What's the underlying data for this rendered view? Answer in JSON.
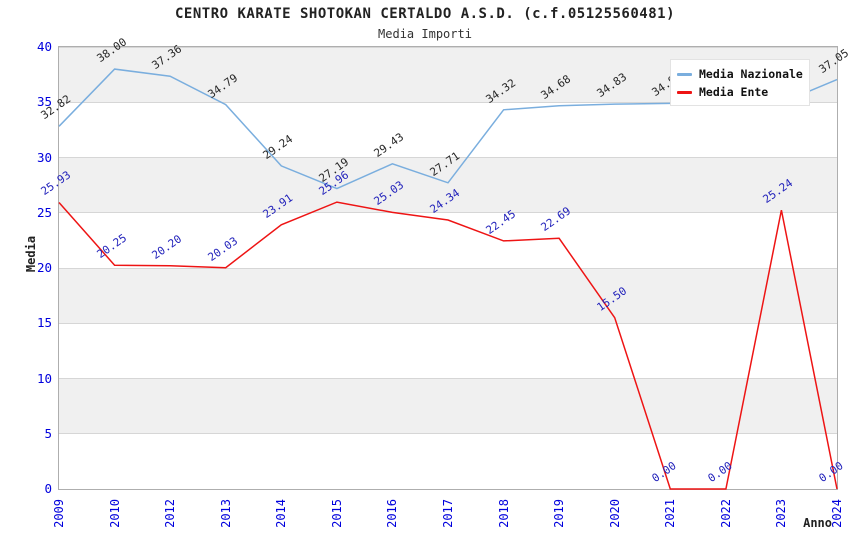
{
  "title": "CENTRO KARATE SHOTOKAN CERTALDO A.S.D. (c.f.05125560481)",
  "subtitle": "Media Importi",
  "colors": {
    "national_line": "#7aaede",
    "ente_line": "#ee1414",
    "axis_tick_text": "#0000dd",
    "national_label_text": "#262626",
    "ente_label_text": "#2222bb",
    "band_gray": "#f0f0f0",
    "gridline": "#d6d6d6",
    "plot_border": "#aeaeae",
    "legend_bg": "#ffffff"
  },
  "legend": {
    "items": [
      {
        "label": "Media Nazionale",
        "color": "#7aaede"
      },
      {
        "label": "Media Ente",
        "color": "#ee1414"
      }
    ]
  },
  "chart_data": {
    "type": "line",
    "title": "CENTRO KARATE SHOTOKAN CERTALDO A.S.D. (c.f.05125560481)",
    "subtitle": "Media Importi",
    "xlabel": "Anno",
    "ylabel": "Media",
    "ylim": [
      0,
      40
    ],
    "yticks": [
      0,
      5,
      10,
      15,
      20,
      25,
      30,
      35,
      40
    ],
    "grid": "horizontal-bands-alternating",
    "legend_position": "top-right",
    "x": [
      "2009",
      "2010",
      "2012",
      "2013",
      "2014",
      "2015",
      "2016",
      "2017",
      "2018",
      "2019",
      "2020",
      "2021",
      "2022",
      "2023",
      "2024"
    ],
    "series": [
      {
        "name": "Media Nazionale",
        "color": "#7aaede",
        "label_color": "#262626",
        "values": [
          32.82,
          38.0,
          37.36,
          34.79,
          29.24,
          27.19,
          29.43,
          27.71,
          34.32,
          34.68,
          34.83,
          34.9,
          34.9,
          34.95,
          37.05
        ],
        "point_labels": [
          "32.82",
          "38.00",
          "37.36",
          "34.79",
          "29.24",
          "27.19",
          "29.43",
          "27.71",
          "34.32",
          "34.68",
          "34.83",
          "34.90",
          "",
          "",
          "37.05"
        ]
      },
      {
        "name": "Media Ente",
        "color": "#ee1414",
        "label_color": "#2222bb",
        "values": [
          25.93,
          20.25,
          20.2,
          20.03,
          23.91,
          25.96,
          25.03,
          24.34,
          22.45,
          22.69,
          15.5,
          0.0,
          0.0,
          25.24,
          0.0
        ],
        "point_labels": [
          "25.93",
          "20.25",
          "20.20",
          "20.03",
          "23.91",
          "25.96",
          "25.03",
          "24.34",
          "22.45",
          "22.69",
          "15.50",
          "0.00",
          "0.00",
          "25.24",
          "0.00"
        ]
      }
    ]
  }
}
